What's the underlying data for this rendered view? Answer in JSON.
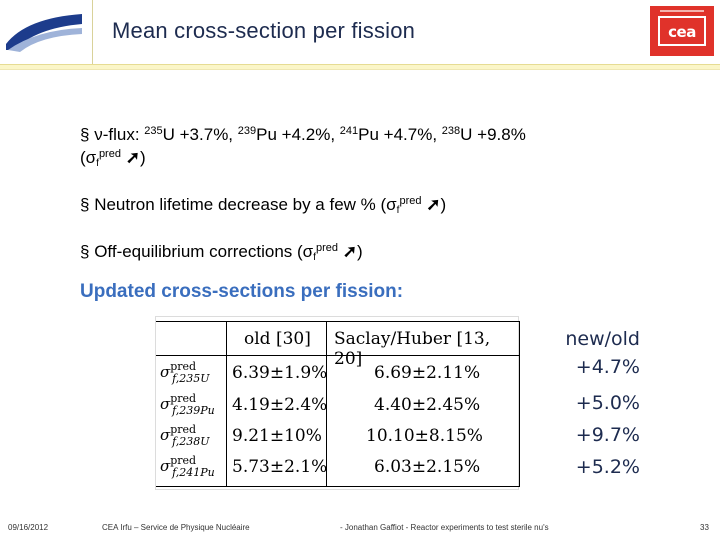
{
  "header": {
    "title": "Mean cross-section per fission",
    "logo_right_text": "cea"
  },
  "bullets": {
    "b1": {
      "marker": "§",
      "prefix": "ν-flux: ",
      "u235_mass": "235",
      "u235_el": "U",
      "u235_val": " +3.7%, ",
      "pu239_mass": "239",
      "pu239_el": "Pu",
      "pu239_val": " +4.2%, ",
      "pu241_mass": "241",
      "pu241_el": "Pu",
      "pu241_val": " +4.7%, ",
      "u238_mass": "238",
      "u238_el": "U",
      "u238_val": " +9.8%",
      "line2_open": "(σ",
      "line2_sub": "f",
      "line2_sup": "pred",
      "line2_close": ")"
    },
    "b2": {
      "marker": "§",
      "text": "Neutron lifetime decrease by a few % (σ",
      "sub": "f",
      "sup": "pred",
      "close": ")"
    },
    "b3": {
      "marker": "§",
      "text": "Off-equilibrium corrections (σ",
      "sub": "f",
      "sup": "pred",
      "close": ")"
    },
    "arrow_glyph": "➚"
  },
  "subheading": "Updated cross-sections per fission:",
  "table": {
    "headers": [
      "old [30]",
      "Saclay/Huber [13, 20]"
    ],
    "rows": [
      {
        "sym": "σ",
        "sup": "pred",
        "sub": "f,235U",
        "old": "6.39±1.9%",
        "new": "6.69±2.11%"
      },
      {
        "sym": "σ",
        "sup": "pred",
        "sub": "f,239Pu",
        "old": "4.19±2.4%",
        "new": "4.40±2.45%"
      },
      {
        "sym": "σ",
        "sup": "pred",
        "sub": "f,238U",
        "old": "9.21±10%",
        "new": "10.10±8.15%"
      },
      {
        "sym": "σ",
        "sup": "pred",
        "sub": "f,241Pu",
        "old": "5.73±2.1%",
        "new": "6.03±2.15%"
      }
    ]
  },
  "side": {
    "header": "new/old",
    "values": [
      "+4.7%",
      "+5.0%",
      "+9.7%",
      "+5.2%"
    ]
  },
  "footer": {
    "date": "09/16/2012",
    "org": "CEA Irfu – Service de Physique Nucléaire",
    "talk": "- Jonathan Gaffiot - Reactor experiments to test sterile nu's",
    "page": "33"
  },
  "colors": {
    "title": "#1d2b4f",
    "subheading": "#3a6ebe",
    "cea_red": "#e0322a",
    "header_band": "#fbf6c8"
  }
}
